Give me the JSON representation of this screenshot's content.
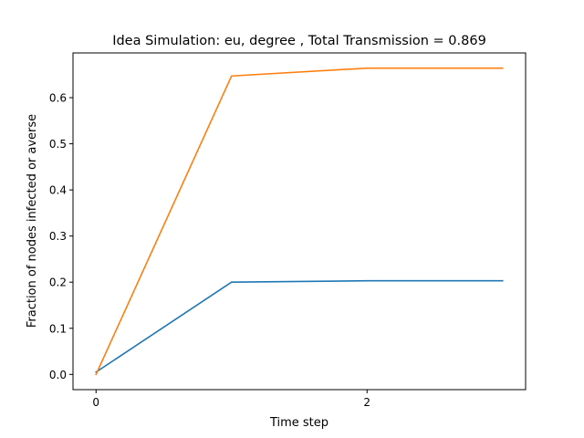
{
  "chart_data": {
    "type": "line",
    "title": "Idea Simulation: eu, degree , Total Transmission = 0.869",
    "xlabel": "Time step",
    "ylabel": "Fraction of nodes infected or averse",
    "xlim": [
      -0.17,
      3.17
    ],
    "ylim": [
      -0.033,
      0.697
    ],
    "xticks": [
      0,
      2
    ],
    "xtick_labels": [
      "0",
      "2"
    ],
    "yticks": [
      0.0,
      0.1,
      0.2,
      0.3,
      0.4,
      0.5,
      0.6
    ],
    "ytick_labels": [
      "0.0",
      "0.1",
      "0.2",
      "0.3",
      "0.4",
      "0.5",
      "0.6"
    ],
    "grid": false,
    "x": [
      0,
      1,
      2,
      3
    ],
    "series": [
      {
        "color": "#1f77b4",
        "values": [
          0.005,
          0.2,
          0.203,
          0.203
        ]
      },
      {
        "color": "#ff7f0e",
        "values": [
          0.0,
          0.647,
          0.664,
          0.664
        ]
      }
    ]
  }
}
